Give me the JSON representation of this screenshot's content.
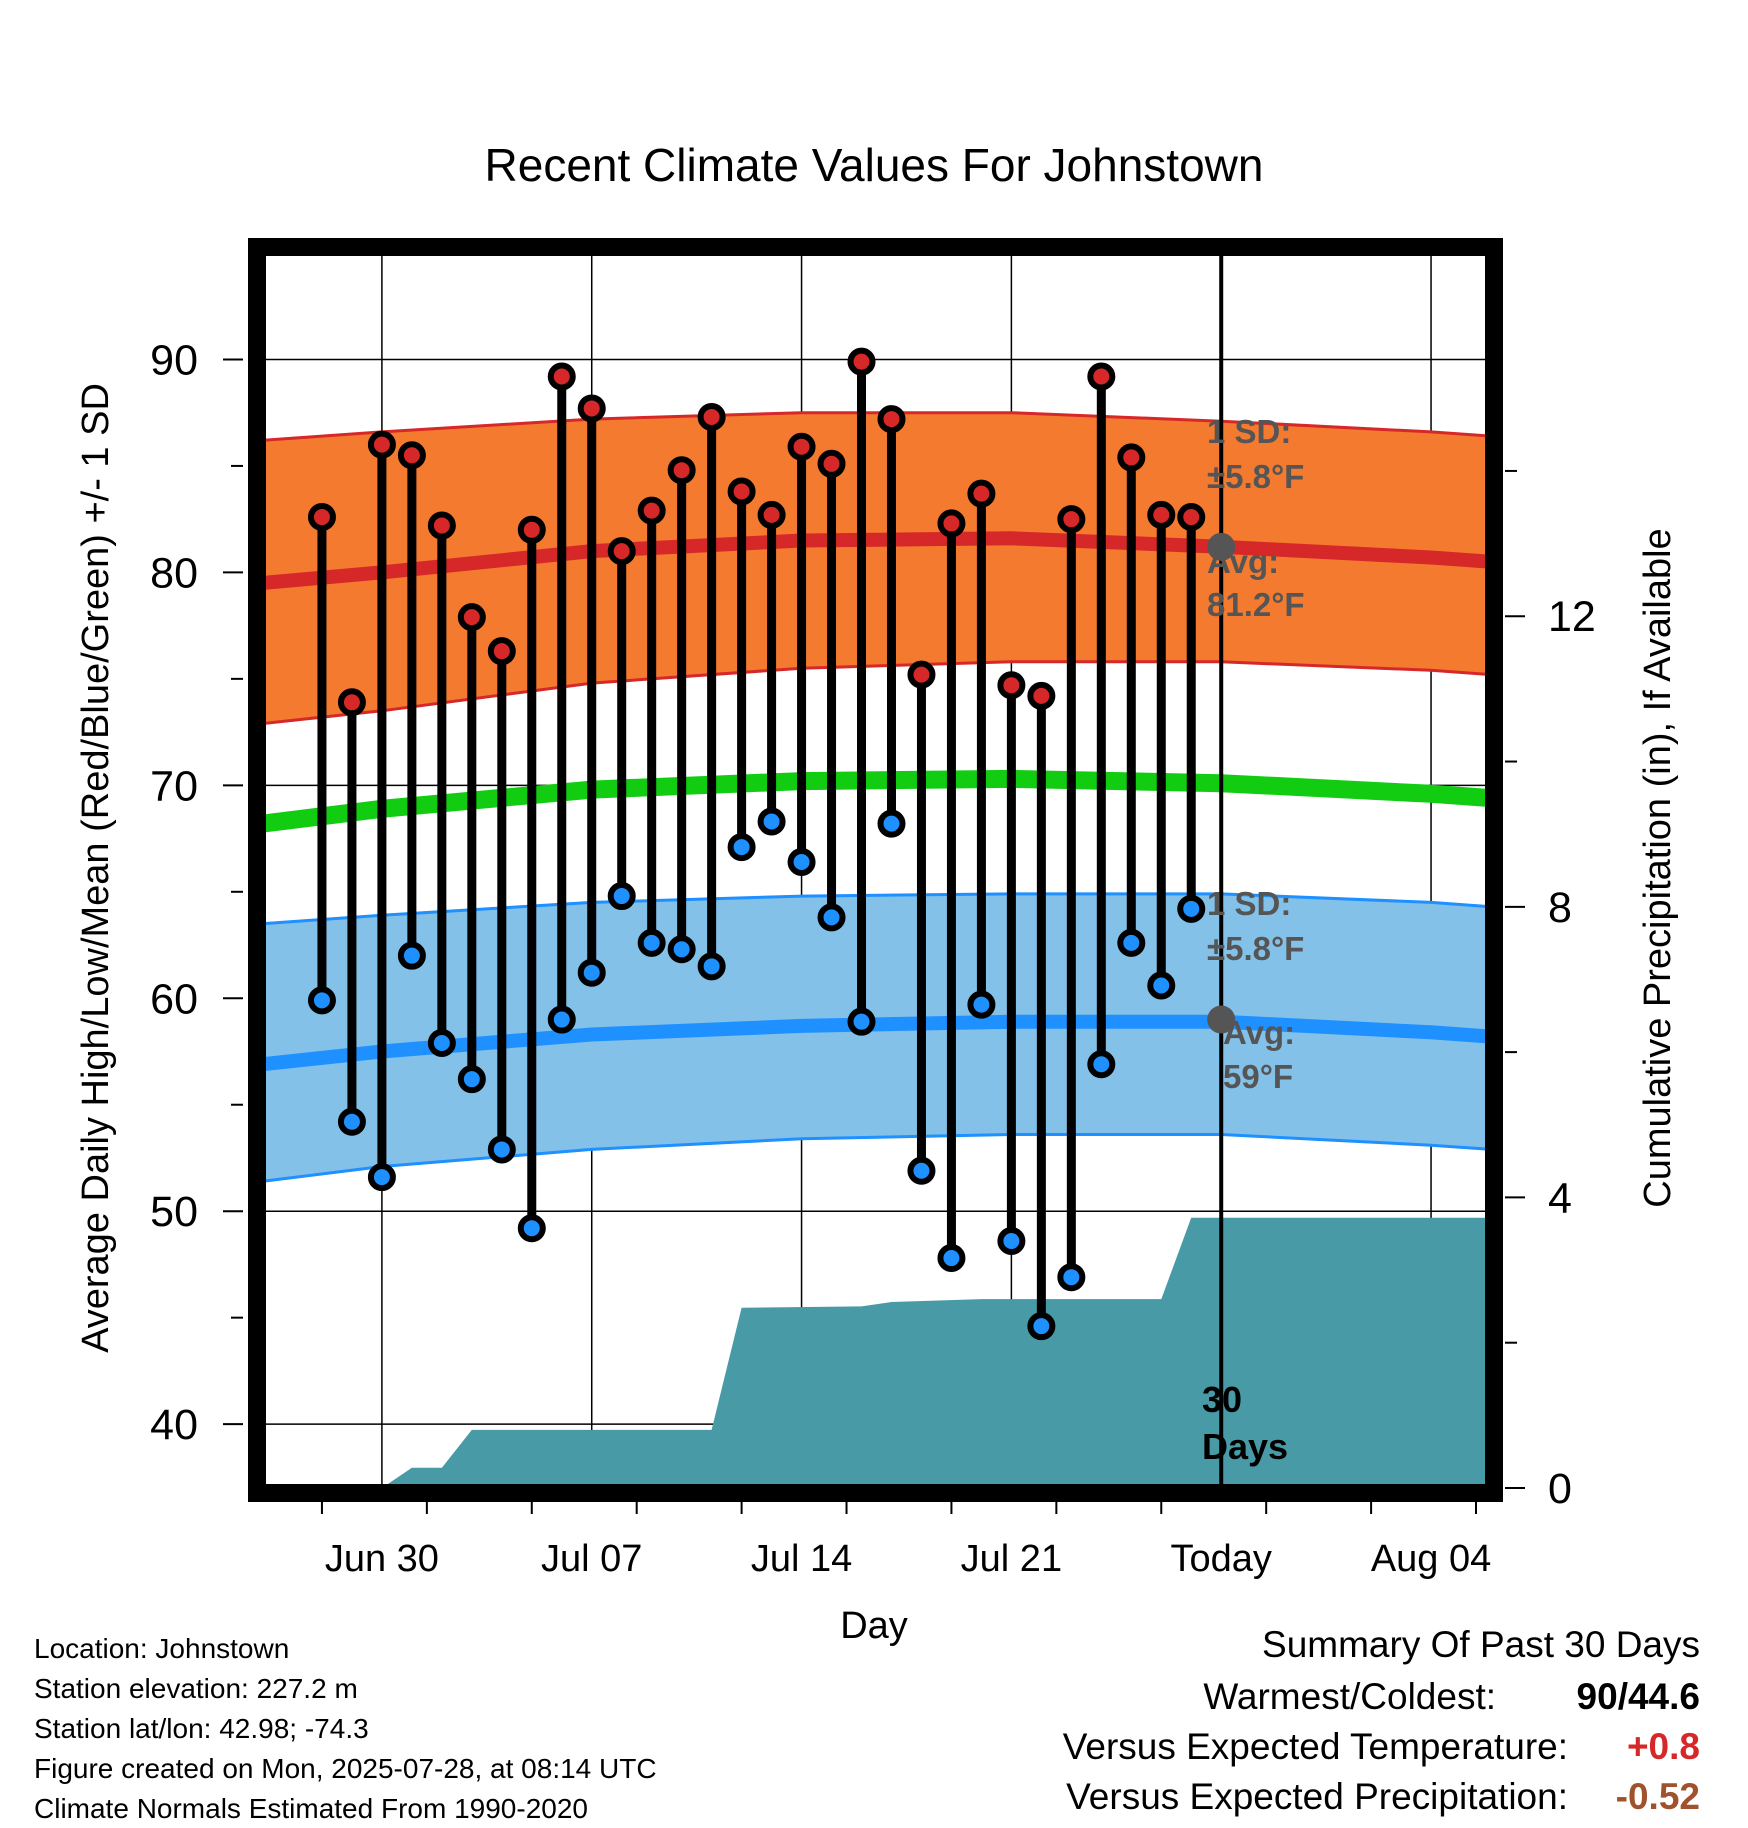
{
  "chart_data": {
    "type": "line",
    "title": "Recent Climate Values For Johnstown",
    "xlabel": "Day",
    "ylabel_left": "Average Daily High/Low/Mean (Red/Blue/Green) +/- 1 SD",
    "ylabel_right": "Cumulative Precipitation (in), If Available",
    "ylim": [
      37,
      95
    ],
    "y_ticks": [
      "40",
      "50",
      "60",
      "70",
      "80",
      "90"
    ],
    "y2lim": [
      0,
      17
    ],
    "y2_ticks": [
      "0",
      "4",
      "8",
      "12"
    ],
    "xlim": [
      "2025-06-26",
      "2025-08-06"
    ],
    "x_ticks": [
      {
        "date": "2025-06-30",
        "label": "Jun 30"
      },
      {
        "date": "2025-07-07",
        "label": "Jul 07"
      },
      {
        "date": "2025-07-14",
        "label": "Jul 14"
      },
      {
        "date": "2025-07-21",
        "label": "Jul 21"
      },
      {
        "date": "2025-07-28",
        "label": "Today"
      },
      {
        "date": "2025-08-04",
        "label": "Aug 04"
      }
    ],
    "today": "2025-07-28",
    "grid": true,
    "daily_observations": {
      "dates": [
        "2025-06-28",
        "2025-06-29",
        "2025-06-30",
        "2025-07-01",
        "2025-07-02",
        "2025-07-03",
        "2025-07-04",
        "2025-07-05",
        "2025-07-06",
        "2025-07-07",
        "2025-07-08",
        "2025-07-09",
        "2025-07-10",
        "2025-07-11",
        "2025-07-12",
        "2025-07-13",
        "2025-07-14",
        "2025-07-15",
        "2025-07-16",
        "2025-07-17",
        "2025-07-18",
        "2025-07-19",
        "2025-07-20",
        "2025-07-21",
        "2025-07-22",
        "2025-07-23",
        "2025-07-24",
        "2025-07-25",
        "2025-07-26",
        "2025-07-27"
      ],
      "highs": [
        82.6,
        73.9,
        86.0,
        85.5,
        82.2,
        77.9,
        76.3,
        82.0,
        89.2,
        87.7,
        81.0,
        82.9,
        84.8,
        87.3,
        83.8,
        82.7,
        85.9,
        85.1,
        89.9,
        87.2,
        75.2,
        82.3,
        83.7,
        74.7,
        74.2,
        82.5,
        89.2,
        85.4,
        82.7,
        82.6
      ],
      "lows": [
        59.9,
        54.2,
        51.6,
        62.0,
        57.9,
        56.2,
        52.9,
        49.2,
        59.0,
        61.2,
        64.8,
        62.6,
        62.3,
        61.5,
        67.1,
        68.3,
        66.4,
        63.8,
        58.9,
        68.2,
        51.9,
        47.8,
        59.7,
        48.6,
        44.6,
        46.9,
        56.9,
        62.6,
        60.6,
        64.2
      ]
    },
    "normals": {
      "dates": [
        "2025-06-26",
        "2025-06-30",
        "2025-07-07",
        "2025-07-14",
        "2025-07-21",
        "2025-07-28",
        "2025-08-04",
        "2025-08-06"
      ],
      "avg_high": [
        79.5,
        80.0,
        81.0,
        81.5,
        81.6,
        81.2,
        80.7,
        80.5
      ],
      "avg_low": [
        56.9,
        57.5,
        58.3,
        58.7,
        58.9,
        58.9,
        58.4,
        58.2
      ],
      "avg_mean": [
        68.2,
        68.9,
        69.8,
        70.2,
        70.3,
        70.1,
        69.6,
        69.4
      ],
      "high_sd_upper": [
        86.2,
        86.6,
        87.2,
        87.5,
        87.5,
        87.1,
        86.6,
        86.4
      ],
      "high_sd_lower": [
        72.9,
        73.5,
        74.8,
        75.5,
        75.8,
        75.8,
        75.4,
        75.2
      ],
      "low_sd_upper": [
        63.5,
        63.9,
        64.5,
        64.8,
        64.9,
        64.9,
        64.5,
        64.3
      ],
      "low_sd_lower": [
        51.4,
        52.1,
        52.9,
        53.4,
        53.6,
        53.6,
        53.1,
        52.9
      ]
    },
    "precipitation": {
      "dates": [
        "2025-06-26",
        "2025-06-30",
        "2025-07-01",
        "2025-07-02",
        "2025-07-03",
        "2025-07-11",
        "2025-07-12",
        "2025-07-16",
        "2025-07-17",
        "2025-07-20",
        "2025-07-26",
        "2025-07-27",
        "2025-08-06"
      ],
      "cumulative": [
        0.0,
        0.0,
        0.28,
        0.28,
        0.8,
        0.8,
        2.48,
        2.5,
        2.56,
        2.6,
        2.6,
        3.72,
        3.72
      ]
    },
    "annotations": {
      "high_sd": {
        "line1": "1 SD:",
        "line2": "±5.8°F"
      },
      "high_avg": {
        "label": "Avg:",
        "value": "81.2°F",
        "y": 81.2
      },
      "low_sd": {
        "line1": "1 SD:",
        "line2": "±5.8°F"
      },
      "low_avg": {
        "label": "Avg:",
        "value": "59°F",
        "y": 59
      },
      "days": {
        "line1": "30",
        "line2": "Days"
      }
    }
  },
  "colors": {
    "high_band": "#f47a30",
    "high_line": "#d62828",
    "low_band": "#83c1e8",
    "low_line": "#1e90ff",
    "mean_line": "#12cc12",
    "precip": "#489ba6",
    "annotation": "#555555",
    "positive": "#d62828",
    "negative": "#a0522d"
  },
  "info": {
    "location": "Location: Johnstown",
    "elevation": "Station elevation: 227.2 m",
    "latlon": "Station lat/lon: 42.98; -74.3",
    "created": "Figure created on Mon, 2025-07-28, at 08:14 UTC",
    "normals": "Climate Normals Estimated From 1990-2020"
  },
  "summary": {
    "title": "Summary Of Past 30 Days",
    "warm_cold_label": "Warmest/Coldest:",
    "warm_cold_value": "90/44.6",
    "temp_label": "Versus Expected Temperature:",
    "temp_value": "+0.8",
    "precip_label": "Versus Expected Precipitation:",
    "precip_value": "-0.52"
  }
}
